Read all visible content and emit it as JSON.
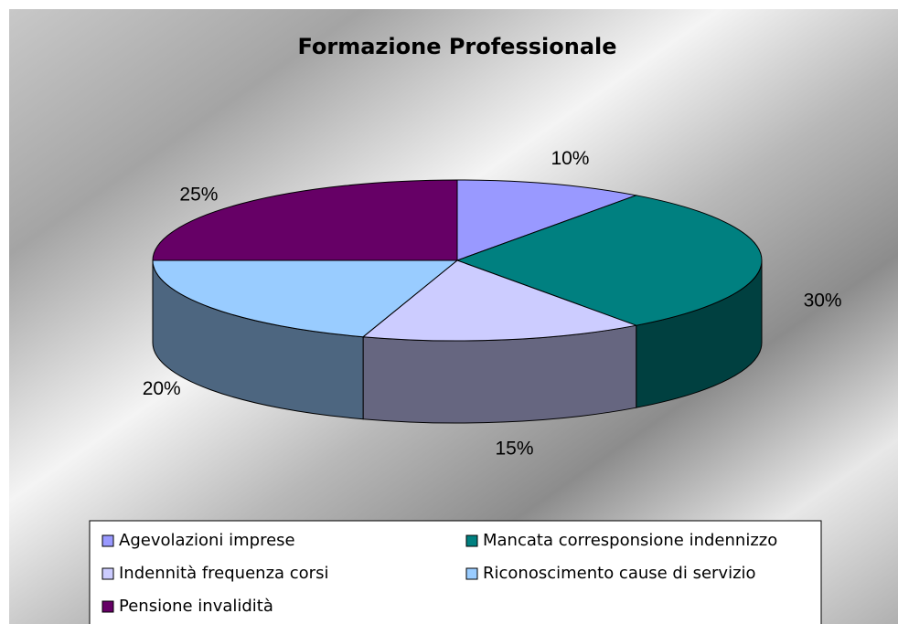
{
  "chart_data": {
    "type": "pie",
    "title": "Formazione Professionale",
    "categories": [
      "Agevolazioni imprese",
      "Mancata corresponsione indennizzo",
      "Indennità frequenza corsi",
      "Riconoscimento cause di servizio",
      "Pensione invalidità"
    ],
    "values": [
      10,
      30,
      15,
      20,
      25
    ],
    "value_labels": [
      "10%",
      "30%",
      "15%",
      "20%",
      "25%"
    ],
    "colors": [
      "#9999ff",
      "#008080",
      "#ccccff",
      "#99ccff",
      "#660066"
    ],
    "legend": "bottom"
  }
}
